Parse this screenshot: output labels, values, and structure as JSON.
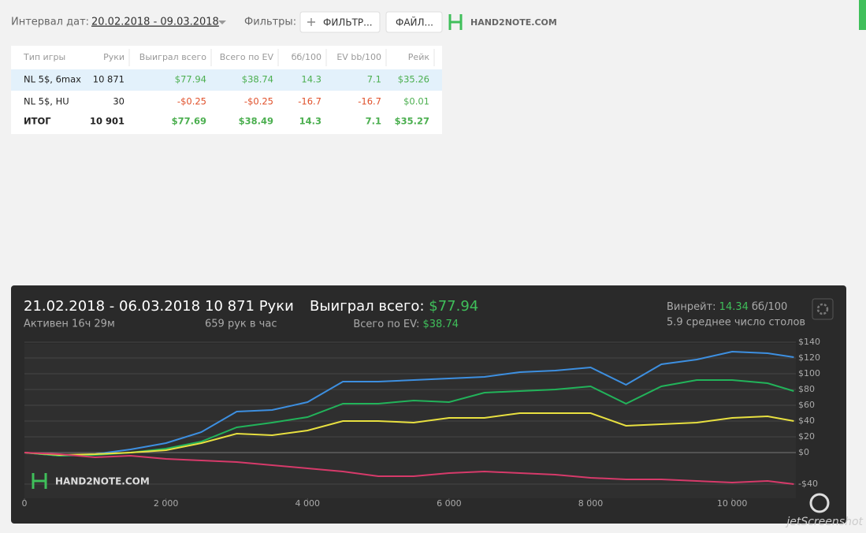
{
  "header": {
    "date_label": "Интервал дат:",
    "date_range": "20.02.2018 - 09.03.2018",
    "filters_label": "Фильтры:",
    "filter_button": "ФИЛЬТР...",
    "file_button": "ФАЙЛ...",
    "logo": "HAND2NOTE.COM"
  },
  "table": {
    "columns": [
      "Тип игры",
      "Руки",
      "Выиграл всего",
      "Всего по EV",
      "бб/100",
      "EV bb/100",
      "Рейк"
    ],
    "rows": [
      [
        "NL 5$, 6max",
        "10 871",
        "$77.94",
        "$38.74",
        "14.3",
        "7.1",
        "$35.26"
      ],
      [
        "NL 5$, HU",
        "30",
        "-$0.25",
        "-$0.25",
        "-16.7",
        "-16.7",
        "$0.01"
      ],
      [
        "ИТОГ",
        "10 901",
        "$77.69",
        "$38.49",
        "14.3",
        "7.1",
        "$35.27"
      ]
    ]
  },
  "summary": {
    "period": "21.02.2018 - 06.03.2018",
    "active": "Активен 16ч 29м",
    "hands": "10 871 Руки",
    "hands_per_hour": "659 рук в час",
    "won_label": "Выиграл всего:",
    "won_value": "$77.94",
    "ev_label": "Всего по EV:",
    "ev_value": "$38.74",
    "winrate_label": "Винрейт:",
    "winrate_value": "14.34",
    "winrate_unit": "бб/100",
    "tables": "5.9 среднее число столов"
  },
  "chart_data": {
    "type": "line",
    "logo": "HAND2NOTE.COM",
    "x": [
      0,
      500,
      1000,
      1500,
      2000,
      2500,
      3000,
      3500,
      4000,
      4500,
      5000,
      5500,
      6000,
      6500,
      7000,
      7500,
      8000,
      8500,
      9000,
      9500,
      10000,
      10500,
      10871
    ],
    "series": [
      {
        "color": "#3d8fe0",
        "values": [
          0,
          -4,
          -2,
          4,
          12,
          26,
          52,
          54,
          64,
          90,
          90,
          92,
          94,
          96,
          102,
          104,
          108,
          86,
          112,
          118,
          128,
          126,
          121
        ]
      },
      {
        "color": "#22b35a",
        "values": [
          0,
          -4,
          -3,
          0,
          5,
          14,
          32,
          38,
          45,
          62,
          62,
          66,
          64,
          76,
          78,
          80,
          84,
          62,
          84,
          92,
          92,
          88,
          78
        ]
      },
      {
        "color": "#e8e040",
        "values": [
          0,
          -3,
          -2,
          0,
          3,
          12,
          24,
          22,
          28,
          40,
          40,
          38,
          44,
          44,
          50,
          50,
          50,
          34,
          36,
          38,
          44,
          46,
          40
        ]
      },
      {
        "color": "#d63a6a",
        "values": [
          0,
          -2,
          -6,
          -4,
          -8,
          -10,
          -12,
          -16,
          -20,
          -24,
          -30,
          -30,
          -26,
          -24,
          -26,
          -28,
          -32,
          -34,
          -34,
          -36,
          -38,
          -36,
          -40
        ]
      }
    ],
    "xlim": [
      0,
      10900
    ],
    "xticks": [
      0,
      {
        "value": 2000,
        "label": "2 000"
      },
      {
        "value": 4000,
        "label": "4 000"
      },
      {
        "value": 6000,
        "label": "6 000"
      },
      {
        "value": 8000,
        "label": "8 000"
      },
      {
        "value": 10000,
        "label": "10 000"
      }
    ],
    "ylim": [
      -60,
      140
    ],
    "yticks": [
      {
        "value": -40,
        "label": "-$40"
      },
      {
        "value": 0,
        "label": "$0"
      },
      {
        "value": 20,
        "label": "$20"
      },
      {
        "value": 40,
        "label": "$40"
      },
      {
        "value": 60,
        "label": "$60"
      },
      {
        "value": 80,
        "label": "$80"
      },
      {
        "value": 100,
        "label": "$100"
      },
      {
        "value": 120,
        "label": "$120"
      },
      {
        "value": 140,
        "label": "$140"
      }
    ],
    "grid": true
  },
  "watermark": "jetScreenshot"
}
